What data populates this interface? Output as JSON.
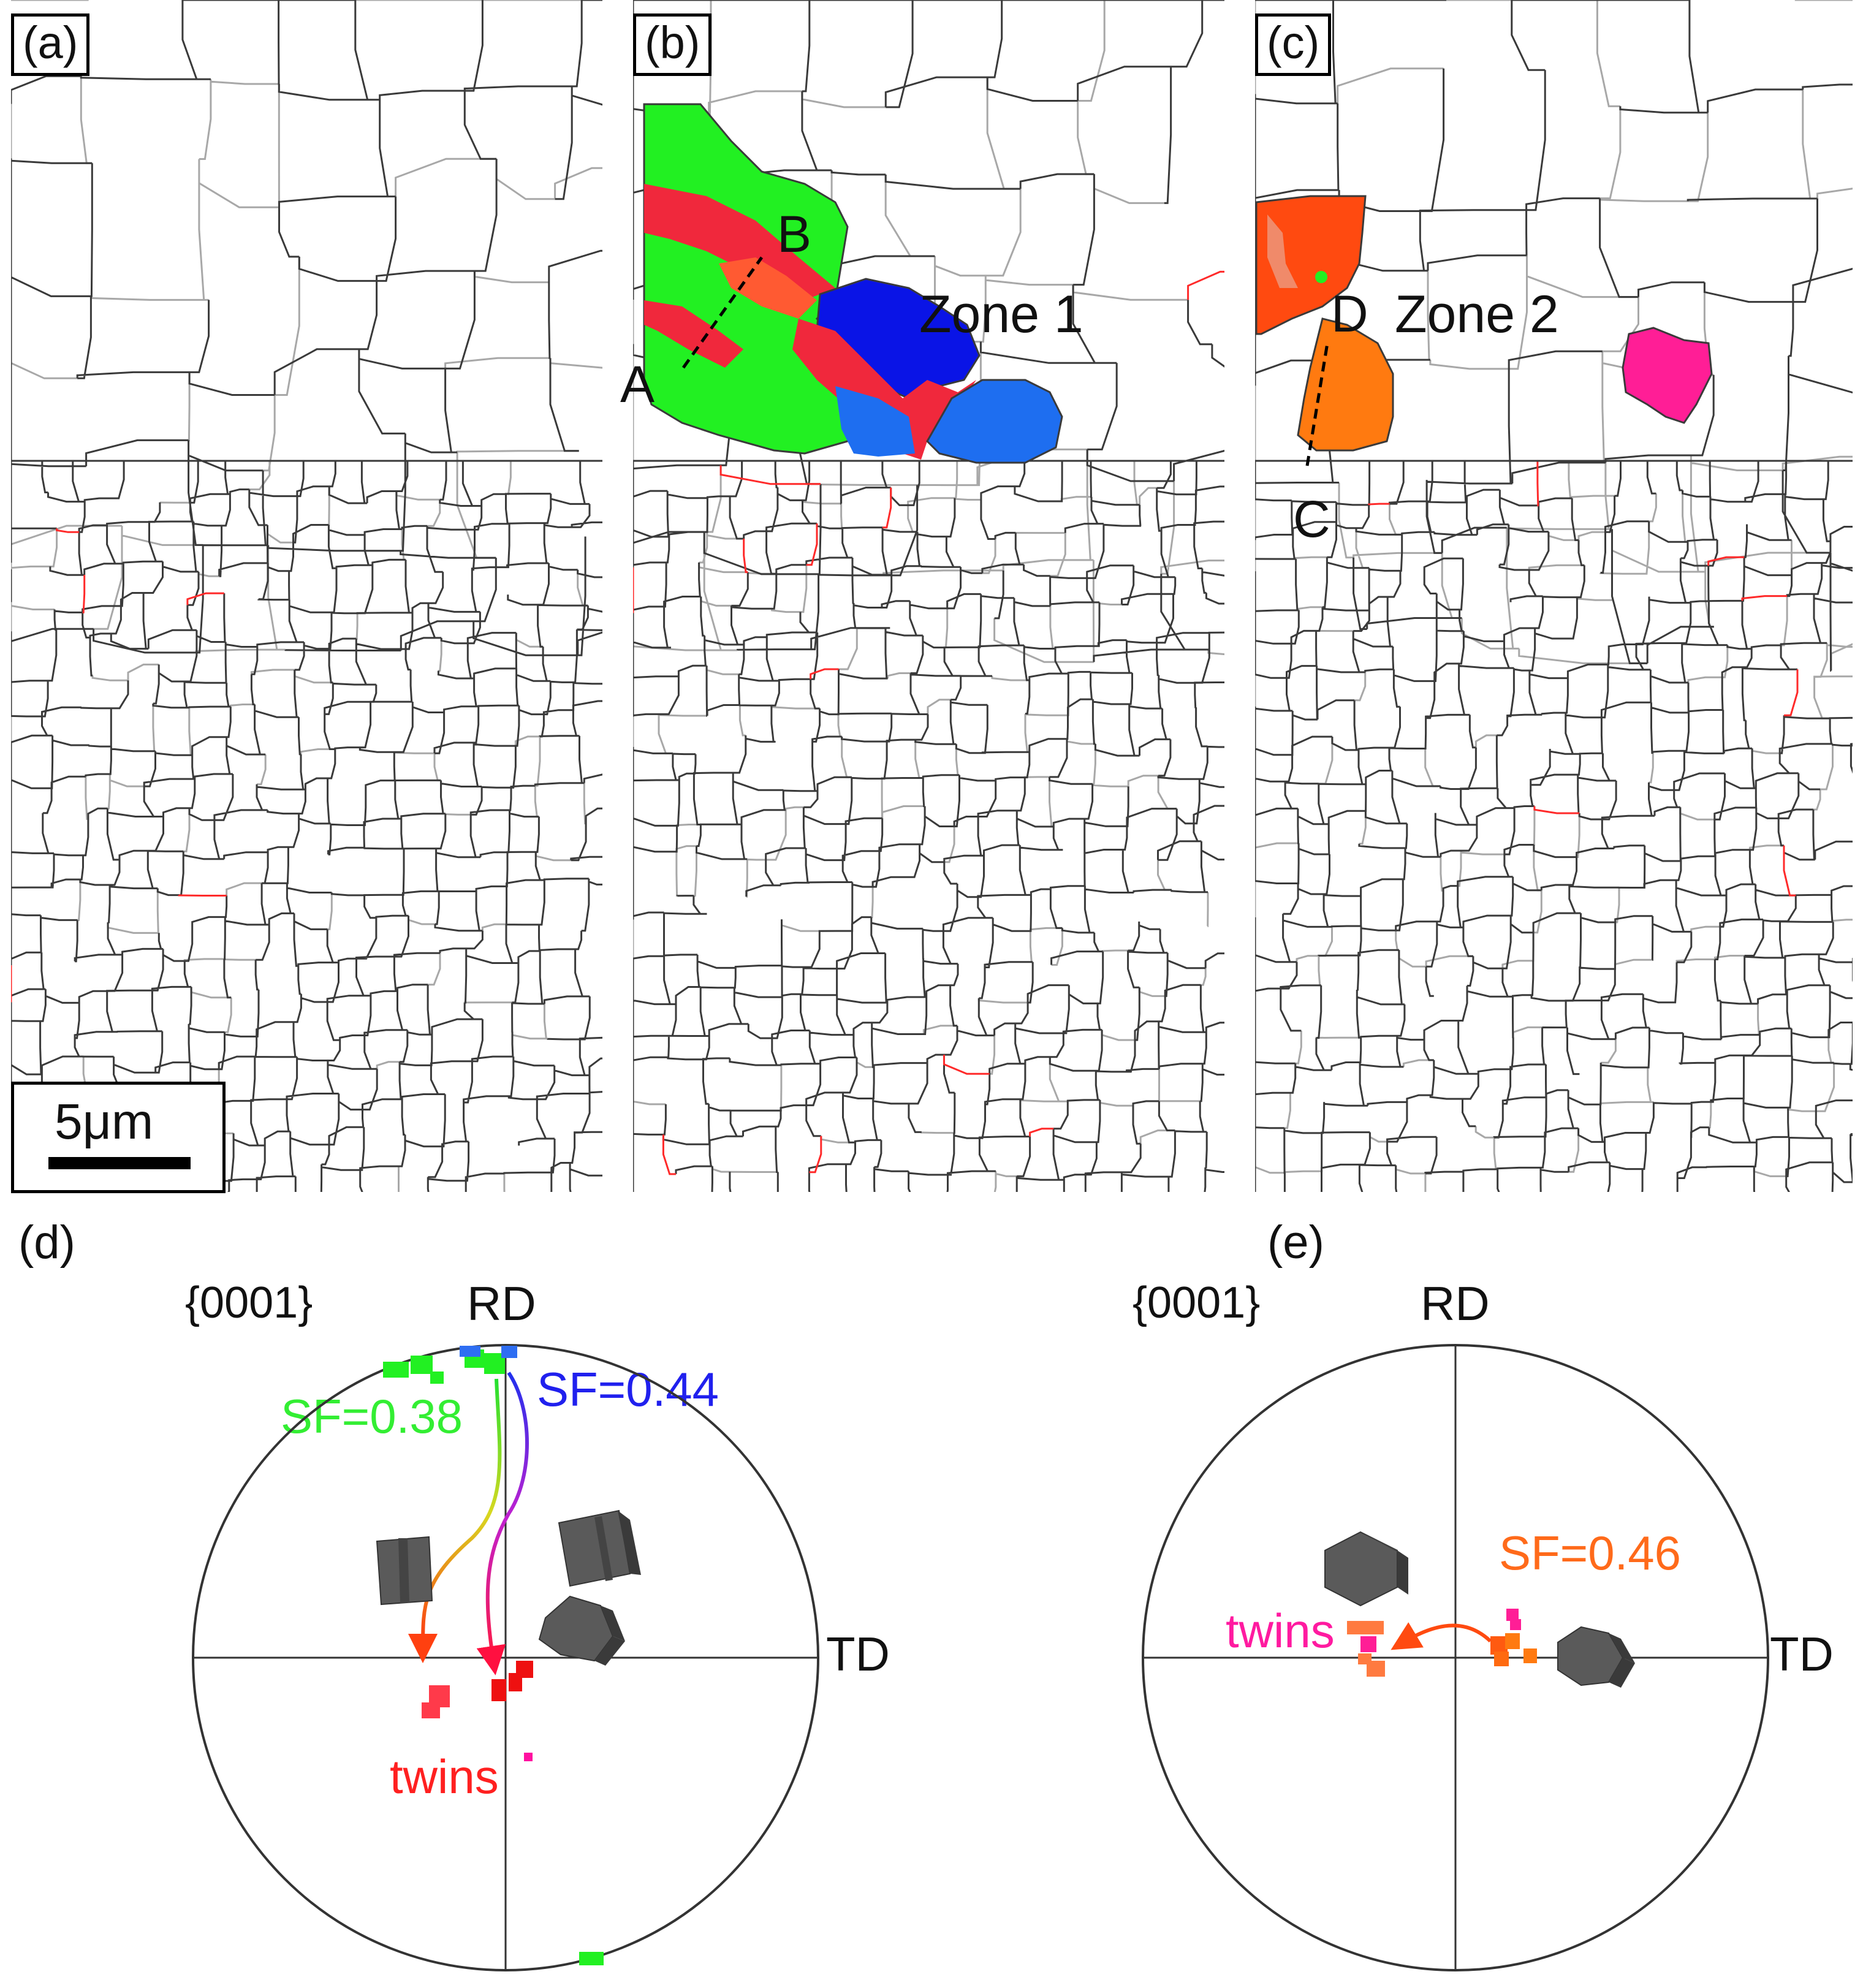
{
  "panels": {
    "a": {
      "tag": "(a)",
      "scale_bar": "5μm"
    },
    "b": {
      "tag": "(b)",
      "zone": "Zone 1",
      "point_a": "A",
      "point_b": "B"
    },
    "c": {
      "tag": "(c)",
      "zone": "Zone 2",
      "point_c": "C",
      "point_d": "D"
    },
    "d": {
      "tag": "(d)",
      "plane": "{0001}",
      "axis_rd": "RD",
      "axis_td": "TD",
      "sf_green": "SF=0.38",
      "sf_blue": "SF=0.44",
      "twins": "twins"
    },
    "e": {
      "tag": "(e)",
      "plane": "{0001}",
      "axis_rd": "RD",
      "axis_td": "TD",
      "sf_orange": "SF=0.46",
      "twins": "twins"
    }
  },
  "colors": {
    "boundary_high": "#3a3a3a",
    "boundary_low": "#a8a8a8",
    "twin_boundary": "#ff2a2a",
    "grain_green": "#22f022",
    "grain_red": "#f0283c",
    "grain_blue": "#0a14e6",
    "grain_lightblue": "#1e6ef0",
    "grain_orange": "#ff7a10",
    "grain_orange_red": "#ff4a10",
    "grain_magenta": "#ff1e96",
    "sf_green_text": "#33ee33",
    "sf_blue_text": "#2020ee",
    "sf_orange_text": "#ff6a1a",
    "twins_red_text": "#ff2020",
    "twins_magenta_text": "#ff1aa0"
  },
  "icons": [
    "hexagonal-prism-icon",
    "hexagonal-prism-icon",
    "hexagonal-prism-icon",
    "hexagonal-prism-icon",
    "hexagonal-prism-icon"
  ]
}
